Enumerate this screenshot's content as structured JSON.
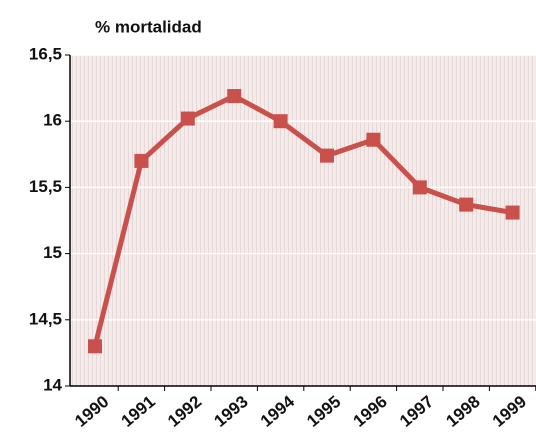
{
  "chart_data": {
    "type": "line",
    "title": "% mortalidad",
    "categories": [
      "1990",
      "1991",
      "1992",
      "1993",
      "1994",
      "1995",
      "1996",
      "1997",
      "1998",
      "1999"
    ],
    "series": [
      {
        "name": "% mortalidad",
        "color": "#c9504b",
        "values": [
          14.3,
          15.7,
          16.02,
          16.19,
          16.0,
          15.74,
          15.86,
          15.5,
          15.37,
          15.31
        ]
      }
    ],
    "ylim": [
      14,
      16.5
    ],
    "yticks": [
      14,
      {
        "value": 14.5,
        "label": "14,5"
      },
      15,
      {
        "value": 15.5,
        "label": "15,5"
      },
      16,
      {
        "value": 16.5,
        "label": "16,5"
      }
    ],
    "grid": true
  }
}
